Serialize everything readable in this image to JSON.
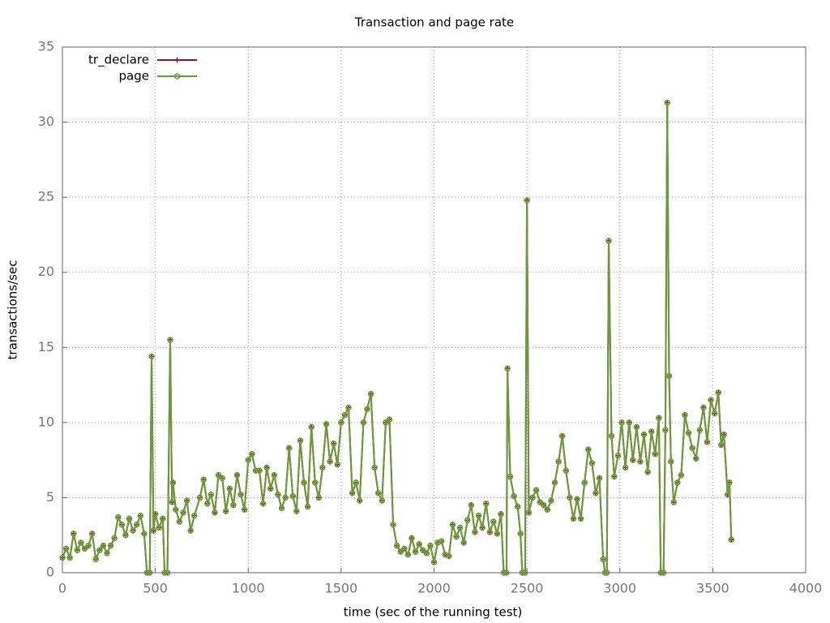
{
  "chart_data": {
    "type": "line",
    "title": "Transaction and page rate",
    "xlabel": "time (sec of the running test)",
    "ylabel": "transactions/sec",
    "x": [
      0,
      20,
      40,
      60,
      80,
      100,
      120,
      140,
      160,
      180,
      200,
      220,
      240,
      260,
      280,
      300,
      320,
      340,
      360,
      380,
      400,
      420,
      440,
      455,
      470,
      480,
      490,
      500,
      520,
      540,
      550,
      565,
      580,
      590,
      595,
      610,
      630,
      650,
      670,
      690,
      710,
      740,
      760,
      780,
      800,
      820,
      840,
      860,
      880,
      900,
      920,
      940,
      960,
      980,
      1000,
      1020,
      1040,
      1060,
      1080,
      1100,
      1120,
      1140,
      1160,
      1180,
      1200,
      1220,
      1240,
      1260,
      1280,
      1300,
      1320,
      1340,
      1360,
      1380,
      1400,
      1420,
      1440,
      1460,
      1480,
      1500,
      1520,
      1540,
      1560,
      1580,
      1600,
      1620,
      1640,
      1660,
      1680,
      1700,
      1720,
      1740,
      1760,
      1780,
      1800,
      1820,
      1840,
      1860,
      1880,
      1900,
      1920,
      1940,
      1960,
      1980,
      2000,
      2020,
      2040,
      2060,
      2080,
      2100,
      2120,
      2140,
      2160,
      2180,
      2200,
      2220,
      2240,
      2260,
      2280,
      2300,
      2320,
      2340,
      2360,
      2375,
      2390,
      2395,
      2410,
      2430,
      2450,
      2465,
      2475,
      2490,
      2500,
      2510,
      2530,
      2550,
      2570,
      2590,
      2610,
      2630,
      2650,
      2670,
      2690,
      2710,
      2730,
      2750,
      2770,
      2790,
      2810,
      2830,
      2850,
      2870,
      2890,
      2910,
      2920,
      2930,
      2940,
      2955,
      2970,
      2990,
      3010,
      3030,
      3050,
      3070,
      3090,
      3110,
      3130,
      3150,
      3170,
      3190,
      3210,
      3220,
      3235,
      3245,
      3255,
      3265,
      3275,
      3290,
      3310,
      3330,
      3350,
      3370,
      3390,
      3410,
      3430,
      3450,
      3470,
      3490,
      3510,
      3530,
      3545,
      3560,
      3580,
      3590,
      3600
    ],
    "series": [
      {
        "name": "tr_declare",
        "color": "#8b1a1a",
        "marker": "plus",
        "values": [
          1.0,
          1.6,
          1.0,
          2.6,
          1.5,
          2.0,
          1.6,
          1.8,
          2.6,
          0.9,
          1.5,
          1.8,
          1.3,
          1.8,
          2.3,
          3.7,
          3.2,
          2.5,
          3.6,
          2.8,
          3.2,
          3.8,
          2.6,
          0,
          0,
          14.4,
          2.8,
          3.9,
          3.0,
          3.6,
          0,
          0,
          15.5,
          4.7,
          6.0,
          4.2,
          3.4,
          4.0,
          4.8,
          2.8,
          3.8,
          5.0,
          6.2,
          4.6,
          5.2,
          4.0,
          6.5,
          6.3,
          4.1,
          5.6,
          4.5,
          6.5,
          5.2,
          4.2,
          7.5,
          7.9,
          6.8,
          6.8,
          4.6,
          7.0,
          5.6,
          6.5,
          5.2,
          4.3,
          5.0,
          8.3,
          5.1,
          4.1,
          8.8,
          6.0,
          4.4,
          9.7,
          6.0,
          5.0,
          7.0,
          9.9,
          7.4,
          8.6,
          7.2,
          10.0,
          10.5,
          11.0,
          5.3,
          6.0,
          4.8,
          10.0,
          10.9,
          11.9,
          7.0,
          5.3,
          4.8,
          10.0,
          10.2,
          3.2,
          1.8,
          1.4,
          1.6,
          1.2,
          2.3,
          1.4,
          1.9,
          1.5,
          1.3,
          1.8,
          0.7,
          2.0,
          2.1,
          1.2,
          1.1,
          3.2,
          2.4,
          3.0,
          2.0,
          3.5,
          4.5,
          2.7,
          3.8,
          3.0,
          4.6,
          2.7,
          3.4,
          2.6,
          3.9,
          0,
          0,
          13.6,
          6.4,
          5.1,
          4.4,
          2.6,
          0,
          0,
          24.8,
          4.0,
          5.0,
          5.5,
          4.7,
          4.5,
          4.2,
          4.8,
          6.0,
          7.4,
          9.1,
          6.8,
          5.0,
          3.6,
          4.9,
          3.6,
          6.0,
          8.2,
          7.3,
          5.3,
          6.3,
          0.9,
          0,
          0,
          22.1,
          9.1,
          6.4,
          7.8,
          10.0,
          7.0,
          10.0,
          7.5,
          9.7,
          7.4,
          9.2,
          6.7,
          9.4,
          7.9,
          10.3,
          0,
          0,
          9.5,
          31.3,
          13.1,
          7.4,
          4.7,
          6.0,
          6.5,
          10.5,
          9.3,
          8.3,
          7.6,
          9.5,
          11.0,
          8.7,
          11.5,
          10.6,
          12.0,
          8.5,
          9.2,
          5.2,
          6.0,
          2.2
        ]
      },
      {
        "name": "page",
        "color": "#6a9a3a",
        "marker": "circle",
        "values": [
          1.0,
          1.6,
          1.0,
          2.6,
          1.5,
          2.0,
          1.6,
          1.8,
          2.6,
          0.9,
          1.5,
          1.8,
          1.3,
          1.8,
          2.3,
          3.7,
          3.2,
          2.5,
          3.6,
          2.8,
          3.2,
          3.8,
          2.6,
          0,
          0,
          14.4,
          2.8,
          3.9,
          3.0,
          3.6,
          0,
          0,
          15.5,
          4.7,
          6.0,
          4.2,
          3.4,
          4.0,
          4.8,
          2.8,
          3.8,
          5.0,
          6.2,
          4.6,
          5.2,
          4.0,
          6.5,
          6.3,
          4.1,
          5.6,
          4.5,
          6.5,
          5.2,
          4.2,
          7.5,
          7.9,
          6.8,
          6.8,
          4.6,
          7.0,
          5.6,
          6.5,
          5.2,
          4.3,
          5.0,
          8.3,
          5.1,
          4.1,
          8.8,
          6.0,
          4.4,
          9.7,
          6.0,
          5.0,
          7.0,
          9.9,
          7.4,
          8.6,
          7.2,
          10.0,
          10.5,
          11.0,
          5.3,
          6.0,
          4.8,
          10.0,
          10.9,
          11.9,
          7.0,
          5.3,
          4.8,
          10.0,
          10.2,
          3.2,
          1.8,
          1.4,
          1.6,
          1.2,
          2.3,
          1.4,
          1.9,
          1.5,
          1.3,
          1.8,
          0.7,
          2.0,
          2.1,
          1.2,
          1.1,
          3.2,
          2.4,
          3.0,
          2.0,
          3.5,
          4.5,
          2.7,
          3.8,
          3.0,
          4.6,
          2.7,
          3.4,
          2.6,
          3.9,
          0,
          0,
          13.6,
          6.4,
          5.1,
          4.4,
          2.6,
          0,
          0,
          24.8,
          4.0,
          5.0,
          5.5,
          4.7,
          4.5,
          4.2,
          4.8,
          6.0,
          7.4,
          9.1,
          6.8,
          5.0,
          3.6,
          4.9,
          3.6,
          6.0,
          8.2,
          7.3,
          5.3,
          6.3,
          0.9,
          0,
          0,
          22.1,
          9.1,
          6.4,
          7.8,
          10.0,
          7.0,
          10.0,
          7.5,
          9.7,
          7.4,
          9.2,
          6.7,
          9.4,
          7.9,
          10.3,
          0,
          0,
          9.5,
          31.3,
          13.1,
          7.4,
          4.7,
          6.0,
          6.5,
          10.5,
          9.3,
          8.3,
          7.6,
          9.5,
          11.0,
          8.7,
          11.5,
          10.6,
          12.0,
          8.5,
          9.2,
          5.2,
          6.0,
          2.2
        ]
      }
    ],
    "xlim": [
      0,
      4000
    ],
    "xticks": [
      0,
      500,
      1000,
      1500,
      2000,
      2500,
      3000,
      3500,
      4000
    ],
    "ylim": [
      0,
      35
    ],
    "yticks": [
      0,
      5,
      10,
      15,
      20,
      25,
      30,
      35
    ],
    "grid": true,
    "legend": "top-left"
  }
}
